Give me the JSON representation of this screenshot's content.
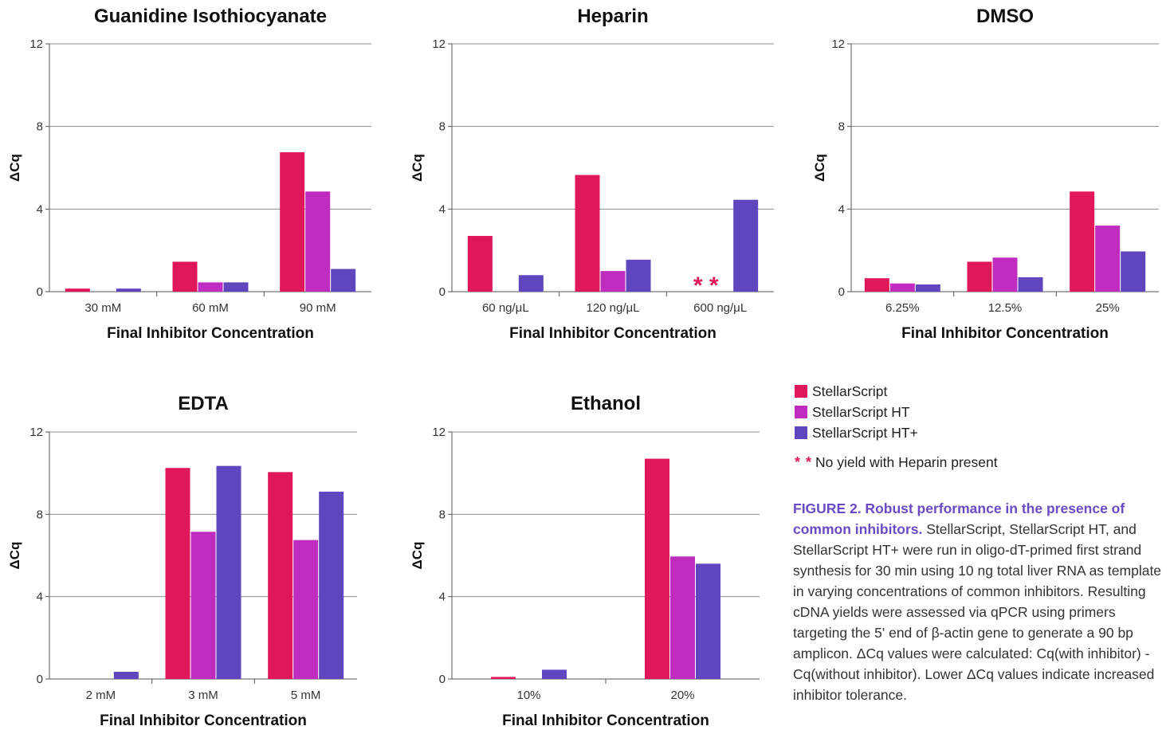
{
  "colors": {
    "stellarscript": "#e0185a",
    "stellarscript_ht": "#c02cc0",
    "stellarscript_htplus": "#5f46bf"
  },
  "legend": {
    "items": [
      {
        "label": "StellarScript",
        "color": "#e0185a"
      },
      {
        "label": "StellarScript HT",
        "color": "#c02cc0"
      },
      {
        "label": "StellarScript HT+",
        "color": "#5f46bf"
      }
    ],
    "footnote_marker": "* *",
    "footnote_text": "No yield with Heparin present"
  },
  "caption": {
    "lead": "FIGURE 2. Robust performance in the presence of common inhibitors.",
    "body": " StellarScript, StellarScript HT, and StellarScript HT+ were run in oligo-dT-primed first strand synthesis for 30 min using 10 ng total liver RNA as template in varying concentrations of common inhibitors. Resulting cDNA yields were assessed via qPCR using primers targeting the 5' end of β-actin gene to generate a 90 bp amplicon. ΔCq values were calculated: Cq(with inhibitor) - Cq(without inhibitor). Lower ΔCq values indicate increased inhibitor tolerance."
  },
  "chart_data": [
    {
      "type": "bar",
      "title": "Guanidine Isothiocyanate",
      "xlabel": "Final Inhibitor Concentration",
      "ylabel": "ΔCq",
      "ylim": [
        0,
        12
      ],
      "yticks": [
        0,
        4,
        8,
        12
      ],
      "categories": [
        "30 mM",
        "60 mM",
        "90 mM"
      ],
      "series": [
        {
          "name": "StellarScript",
          "values": [
            0.15,
            1.45,
            6.75
          ]
        },
        {
          "name": "StellarScript HT",
          "values": [
            0,
            0.45,
            4.85
          ]
        },
        {
          "name": "StellarScript HT+",
          "values": [
            0.15,
            0.45,
            1.1
          ]
        }
      ],
      "grid": true
    },
    {
      "type": "bar",
      "title": "Heparin",
      "xlabel": "Final Inhibitor Concentration",
      "ylabel": "ΔCq",
      "ylim": [
        0,
        12
      ],
      "yticks": [
        0,
        4,
        8,
        12
      ],
      "categories": [
        "60 ng/μL",
        "120 ng/μL",
        "600 ng/μL"
      ],
      "series": [
        {
          "name": "StellarScript",
          "values": [
            2.7,
            5.65,
            null
          ]
        },
        {
          "name": "StellarScript HT",
          "values": [
            0,
            1.0,
            null
          ]
        },
        {
          "name": "StellarScript HT+",
          "values": [
            0.8,
            1.55,
            4.45
          ]
        }
      ],
      "annotations": [
        {
          "category": "600 ng/μL",
          "text": "* *"
        }
      ],
      "grid": true
    },
    {
      "type": "bar",
      "title": "DMSO",
      "xlabel": "Final Inhibitor Concentration",
      "ylabel": "ΔCq",
      "ylim": [
        0,
        12
      ],
      "yticks": [
        0,
        4,
        8,
        12
      ],
      "categories": [
        "6.25%",
        "12.5%",
        "25%"
      ],
      "series": [
        {
          "name": "StellarScript",
          "values": [
            0.65,
            1.45,
            4.85
          ]
        },
        {
          "name": "StellarScript HT",
          "values": [
            0.4,
            1.65,
            3.2
          ]
        },
        {
          "name": "StellarScript HT+",
          "values": [
            0.35,
            0.7,
            1.95
          ]
        }
      ],
      "grid": true
    },
    {
      "type": "bar",
      "title": "EDTA",
      "xlabel": "Final Inhibitor Concentration",
      "ylabel": "ΔCq",
      "ylim": [
        0,
        12
      ],
      "yticks": [
        0,
        4,
        8,
        12
      ],
      "categories": [
        "2 mM",
        "3 mM",
        "5 mM"
      ],
      "series": [
        {
          "name": "StellarScript",
          "values": [
            0,
            10.25,
            10.05
          ]
        },
        {
          "name": "StellarScript HT",
          "values": [
            0,
            7.15,
            6.75
          ]
        },
        {
          "name": "StellarScript HT+",
          "values": [
            0.35,
            10.35,
            9.1
          ]
        }
      ],
      "grid": true
    },
    {
      "type": "bar",
      "title": "Ethanol",
      "xlabel": "Final Inhibitor Concentration",
      "ylabel": "ΔCq",
      "ylim": [
        0,
        12
      ],
      "yticks": [
        0,
        4,
        8,
        12
      ],
      "categories": [
        "10%",
        "20%"
      ],
      "series": [
        {
          "name": "StellarScript",
          "values": [
            0.1,
            10.7
          ]
        },
        {
          "name": "StellarScript HT",
          "values": [
            0,
            5.95
          ]
        },
        {
          "name": "StellarScript HT+",
          "values": [
            0.45,
            5.6
          ]
        }
      ],
      "grid": true
    }
  ]
}
